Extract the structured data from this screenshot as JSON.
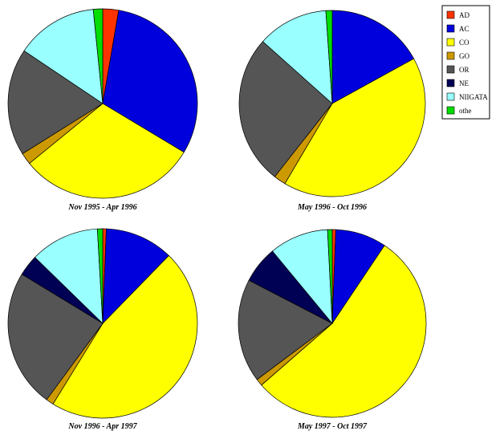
{
  "legend": [
    {
      "label": "AD",
      "color": "#ff3300"
    },
    {
      "label": "AC",
      "color": "#0000dd"
    },
    {
      "label": "CO",
      "color": "#ffff00"
    },
    {
      "label": "GO",
      "color": "#cc9900"
    },
    {
      "label": "OR",
      "color": "#555555"
    },
    {
      "label": "NE",
      "color": "#000055"
    },
    {
      "label": "NIIGATA",
      "color": "#99ffff"
    },
    {
      "label": "othe",
      "color": "#00dd00"
    }
  ],
  "chart_data": [
    {
      "type": "pie",
      "title": "Nov 1995 - Apr 1996",
      "categories": [
        "AD",
        "AC",
        "CO",
        "GO",
        "OR",
        "NE",
        "NIIGATA",
        "othe"
      ],
      "values": [
        2.7,
        30.9,
        30.5,
        2.0,
        18.3,
        0,
        14.0,
        1.6
      ]
    },
    {
      "type": "pie",
      "title": "May 1996 - Oct 1996",
      "categories": [
        "AD",
        "AC",
        "CO",
        "GO",
        "OR",
        "NE",
        "NIIGATA",
        "othe"
      ],
      "values": [
        0,
        17.0,
        41.5,
        2.1,
        26.0,
        0,
        12.3,
        1.1
      ]
    },
    {
      "type": "pie",
      "title": "Nov 1996 - Apr 1997",
      "categories": [
        "AD",
        "AC",
        "CO",
        "GO",
        "OR",
        "NE",
        "NIIGATA",
        "othe"
      ],
      "values": [
        0.6,
        11.7,
        46.5,
        1.3,
        23.6,
        3.6,
        11.8,
        0.9
      ]
    },
    {
      "type": "pie",
      "title": "May 1997 - Oct 1997",
      "categories": [
        "AD",
        "AC",
        "CO",
        "GO",
        "OR",
        "NE",
        "NIIGATA",
        "othe"
      ],
      "values": [
        0.6,
        8.8,
        54.2,
        1.2,
        17.8,
        6.4,
        10.2,
        0.8
      ]
    }
  ]
}
